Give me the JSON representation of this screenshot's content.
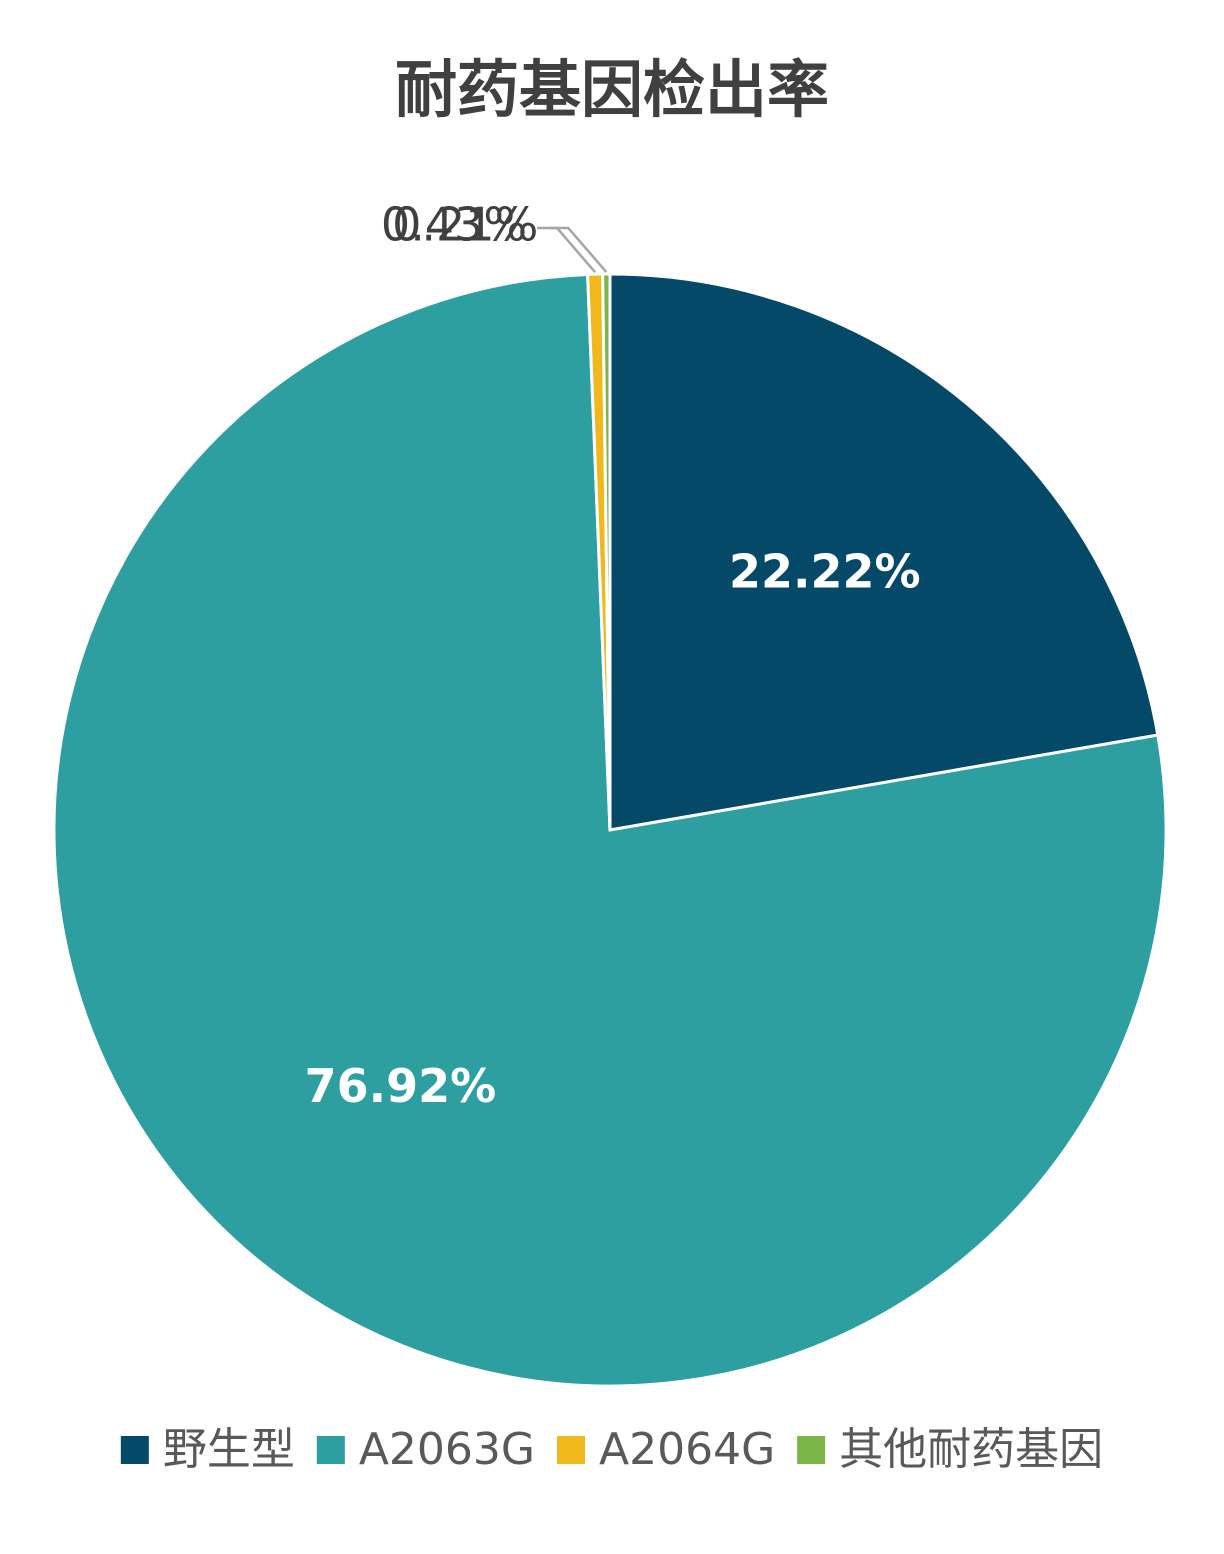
{
  "chart_data": {
    "type": "pie",
    "title": "耐药基因检出率",
    "categories": [
      "野生型",
      "A2063G",
      "A2064G",
      "其他耐药基因"
    ],
    "values": [
      22.22,
      76.92,
      0.43,
      0.21
    ],
    "value_labels": [
      "22.22%",
      "76.92%",
      "0.43%",
      "0.21%"
    ],
    "colors": [
      "#044a68",
      "#2e9fa0",
      "#f0b81c",
      "#7ab648"
    ],
    "legend": "bottom"
  }
}
